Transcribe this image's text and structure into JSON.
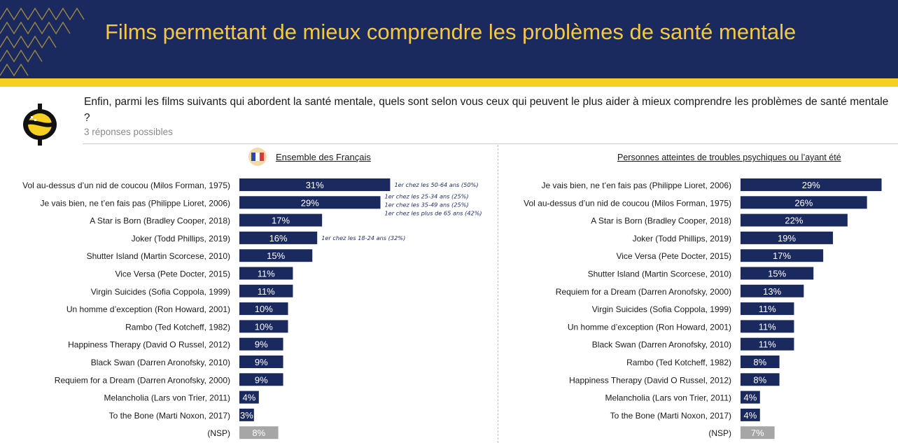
{
  "header": {
    "title": "Films permettant de mieux comprendre les problèmes de santé mentale"
  },
  "question": {
    "text": "Enfin, parmi les films suivants qui abordent la santé mentale, quels sont selon vous ceux qui peuvent le plus aider à mieux comprendre les problèmes de santé mentale ?",
    "hint": "3 réponses possibles"
  },
  "colors": {
    "header_bg": "#1b2a5e",
    "title": "#f5c842",
    "band": "#f5d020",
    "bar": "#1b2a5e",
    "nsp_bar": "#a6a6a6",
    "note": "#1b2a5e"
  },
  "chart_data": [
    {
      "type": "bar",
      "orientation": "horizontal",
      "title": "Ensemble des Français",
      "categories": [
        "Vol au-dessus d’un nid de coucou (Milos Forman, 1975)",
        "Je vais bien, ne t’en fais pas (Philippe Lioret, 2006)",
        "A Star is Born (Bradley Cooper, 2018)",
        "Joker (Todd Phillips, 2019)",
        "Shutter Island (Martin Scorcese, 2010)",
        "Vice Versa (Pete Docter, 2015)",
        "Virgin Suicides (Sofia Coppola, 1999)",
        "Un homme d’exception (Ron Howard, 2001)",
        "Rambo (Ted Kotcheff, 1982)",
        "Happiness Therapy (David O Russel, 2012)",
        "Black Swan (Darren Aronofsky, 2010)",
        "Requiem for a Dream (Darren Aronofsky, 2000)",
        "Melancholia (Lars von Trier, 2011)",
        "To the Bone (Marti Noxon, 2017)",
        "(NSP)"
      ],
      "values": [
        31,
        29,
        17,
        16,
        15,
        11,
        11,
        10,
        10,
        9,
        9,
        9,
        4,
        3,
        8
      ],
      "labels": [
        "31%",
        "29%",
        "17%",
        "16%",
        "15%",
        "11%",
        "11%",
        "10%",
        "10%",
        "9%",
        "9%",
        "9%",
        "4%",
        "3%",
        "8%"
      ],
      "annotations": [
        {
          "row": 0,
          "lines": [
            "1er chez les 50-64 ans (50%)"
          ]
        },
        {
          "row": 1,
          "lines": [
            "1er chez les 25-34 ans (25%)",
            "1er chez les 35-49 ans (25%)",
            "1er chez les plus de 65 ans (42%)"
          ]
        },
        {
          "row": 3,
          "lines": [
            "1er chez les 18-24 ans (32%)"
          ]
        }
      ]
    },
    {
      "type": "bar",
      "orientation": "horizontal",
      "title": "Personnes atteintes de troubles psychiques ou l’ayant été",
      "categories": [
        "Je vais bien, ne t’en fais pas (Philippe Lioret, 2006)",
        "Vol au-dessus d’un nid de coucou (Milos Forman, 1975)",
        "A Star is Born (Bradley Cooper, 2018)",
        "Joker (Todd Phillips, 2019)",
        "Vice Versa (Pete Docter, 2015)",
        "Shutter Island (Martin Scorcese, 2010)",
        "Requiem for a Dream (Darren Aronofsky, 2000)",
        "Virgin Suicides (Sofia Coppola, 1999)",
        "Un homme d’exception (Ron Howard, 2001)",
        "Black Swan (Darren Aronofsky, 2010)",
        "Rambo (Ted Kotcheff, 1982)",
        "Happiness Therapy (David O Russel, 2012)",
        "Melancholia (Lars von Trier, 2011)",
        "To the Bone (Marti Noxon, 2017)",
        "(NSP)"
      ],
      "values": [
        29,
        26,
        22,
        19,
        17,
        15,
        13,
        11,
        11,
        11,
        8,
        8,
        4,
        4,
        7
      ],
      "labels": [
        "29%",
        "26%",
        "22%",
        "19%",
        "17%",
        "15%",
        "13%",
        "11%",
        "11%",
        "11%",
        "8%",
        "8%",
        "4%",
        "4%",
        "7%"
      ]
    }
  ]
}
